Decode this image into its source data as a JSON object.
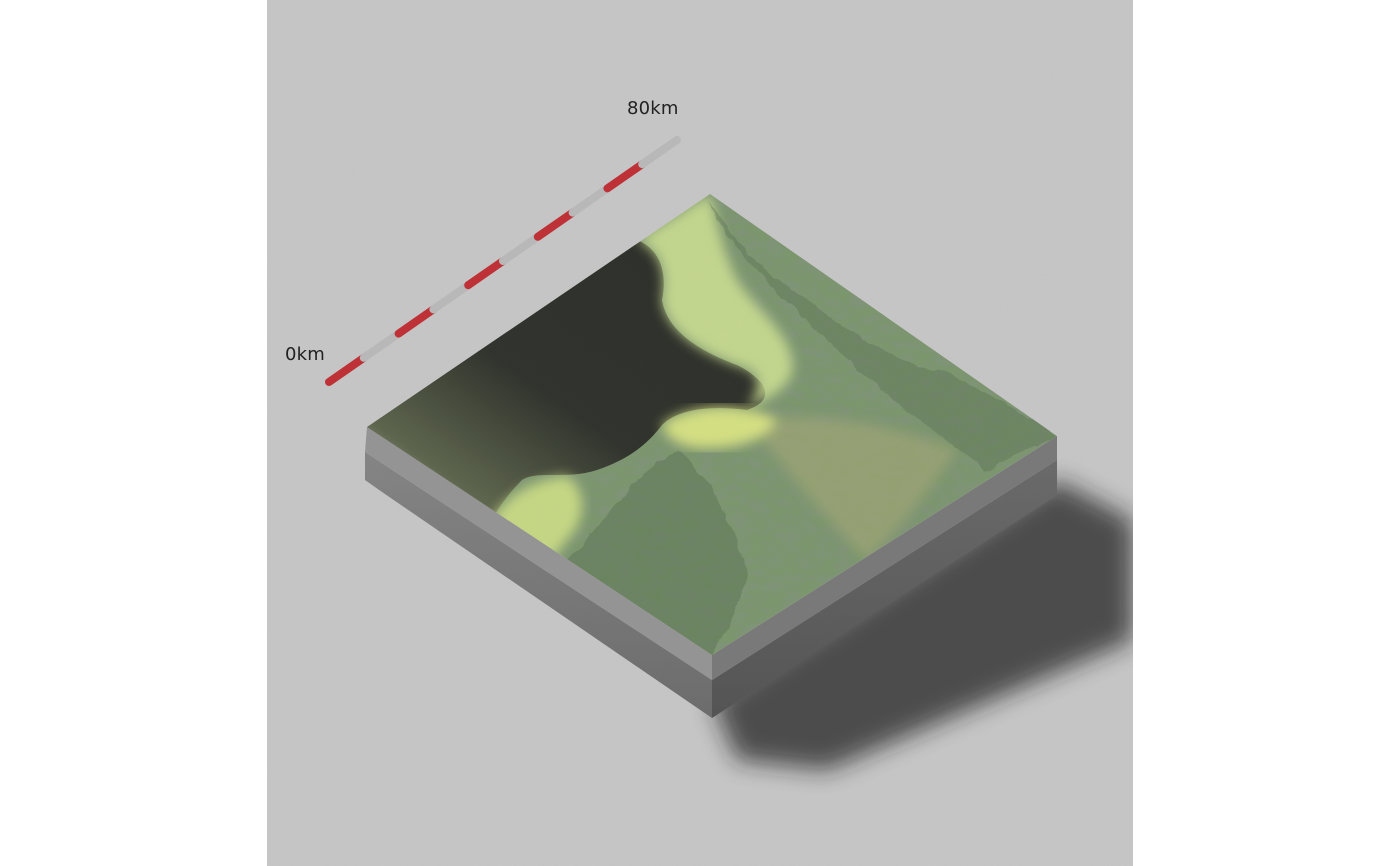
{
  "scale_bar": {
    "start_label": "0km",
    "end_label": "80km",
    "segments": 10,
    "colors": {
      "light": "#b9b9b9",
      "dark": "#c0141b"
    }
  },
  "colors": {
    "background": "#c9c9c9",
    "water_deep": "#1a1f12",
    "shallow": "#dcec8a",
    "terrain": "#6f8f5e",
    "terrain_dark": "#3f5a39",
    "base": "#6e6e6e"
  }
}
